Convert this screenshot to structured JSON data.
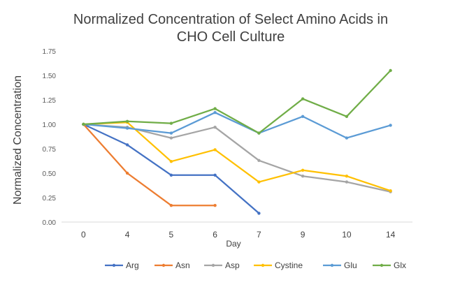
{
  "chart_data": {
    "type": "line",
    "title_lines": [
      "Normalized Concentration of Select Amino Acids in",
      "CHO Cell Culture"
    ],
    "xlabel": "Day",
    "ylabel": "Normalized Concentration",
    "categories": [
      "0",
      "4",
      "5",
      "6",
      "7",
      "9",
      "10",
      "14"
    ],
    "ylim": [
      0,
      1.75
    ],
    "yticks": [
      "0.00",
      "0.25",
      "0.50",
      "0.75",
      "1.00",
      "1.25",
      "1.50",
      "1.75"
    ],
    "grid": false,
    "legend_position": "bottom",
    "series": [
      {
        "name": "Arg",
        "color": "#4472C4",
        "values": [
          1.0,
          0.79,
          0.48,
          0.48,
          0.09,
          null,
          null,
          null
        ]
      },
      {
        "name": "Asn",
        "color": "#ED7D31",
        "values": [
          1.0,
          0.5,
          0.17,
          0.17,
          null,
          null,
          null,
          null
        ]
      },
      {
        "name": "Asp",
        "color": "#A5A5A5",
        "values": [
          1.0,
          0.97,
          0.86,
          0.97,
          0.63,
          0.47,
          0.41,
          0.31
        ]
      },
      {
        "name": "Cystine",
        "color": "#FFC000",
        "values": [
          1.0,
          1.02,
          0.62,
          0.74,
          0.41,
          0.53,
          0.47,
          0.32
        ]
      },
      {
        "name": "Glu",
        "color": "#5B9BD5",
        "values": [
          1.0,
          0.96,
          0.91,
          1.12,
          0.91,
          1.08,
          0.86,
          0.99
        ]
      },
      {
        "name": "Glx",
        "color": "#70AD47",
        "values": [
          1.0,
          1.03,
          1.01,
          1.16,
          0.91,
          1.26,
          1.08,
          1.55
        ]
      }
    ]
  }
}
